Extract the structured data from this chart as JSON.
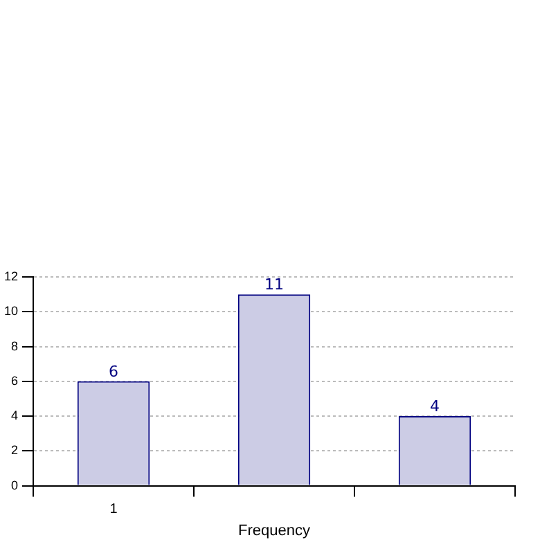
{
  "chart_data": {
    "type": "bar",
    "xlabel": "Frequency",
    "categories": [
      "1",
      null,
      null
    ],
    "values": [
      6,
      11,
      4
    ],
    "color": "#ccccE5",
    "ylim": [
      0,
      12
    ],
    "yticks": [
      0,
      2,
      4,
      6,
      8,
      10,
      12
    ],
    "grid": true,
    "data_labels": true,
    "legend": false
  }
}
